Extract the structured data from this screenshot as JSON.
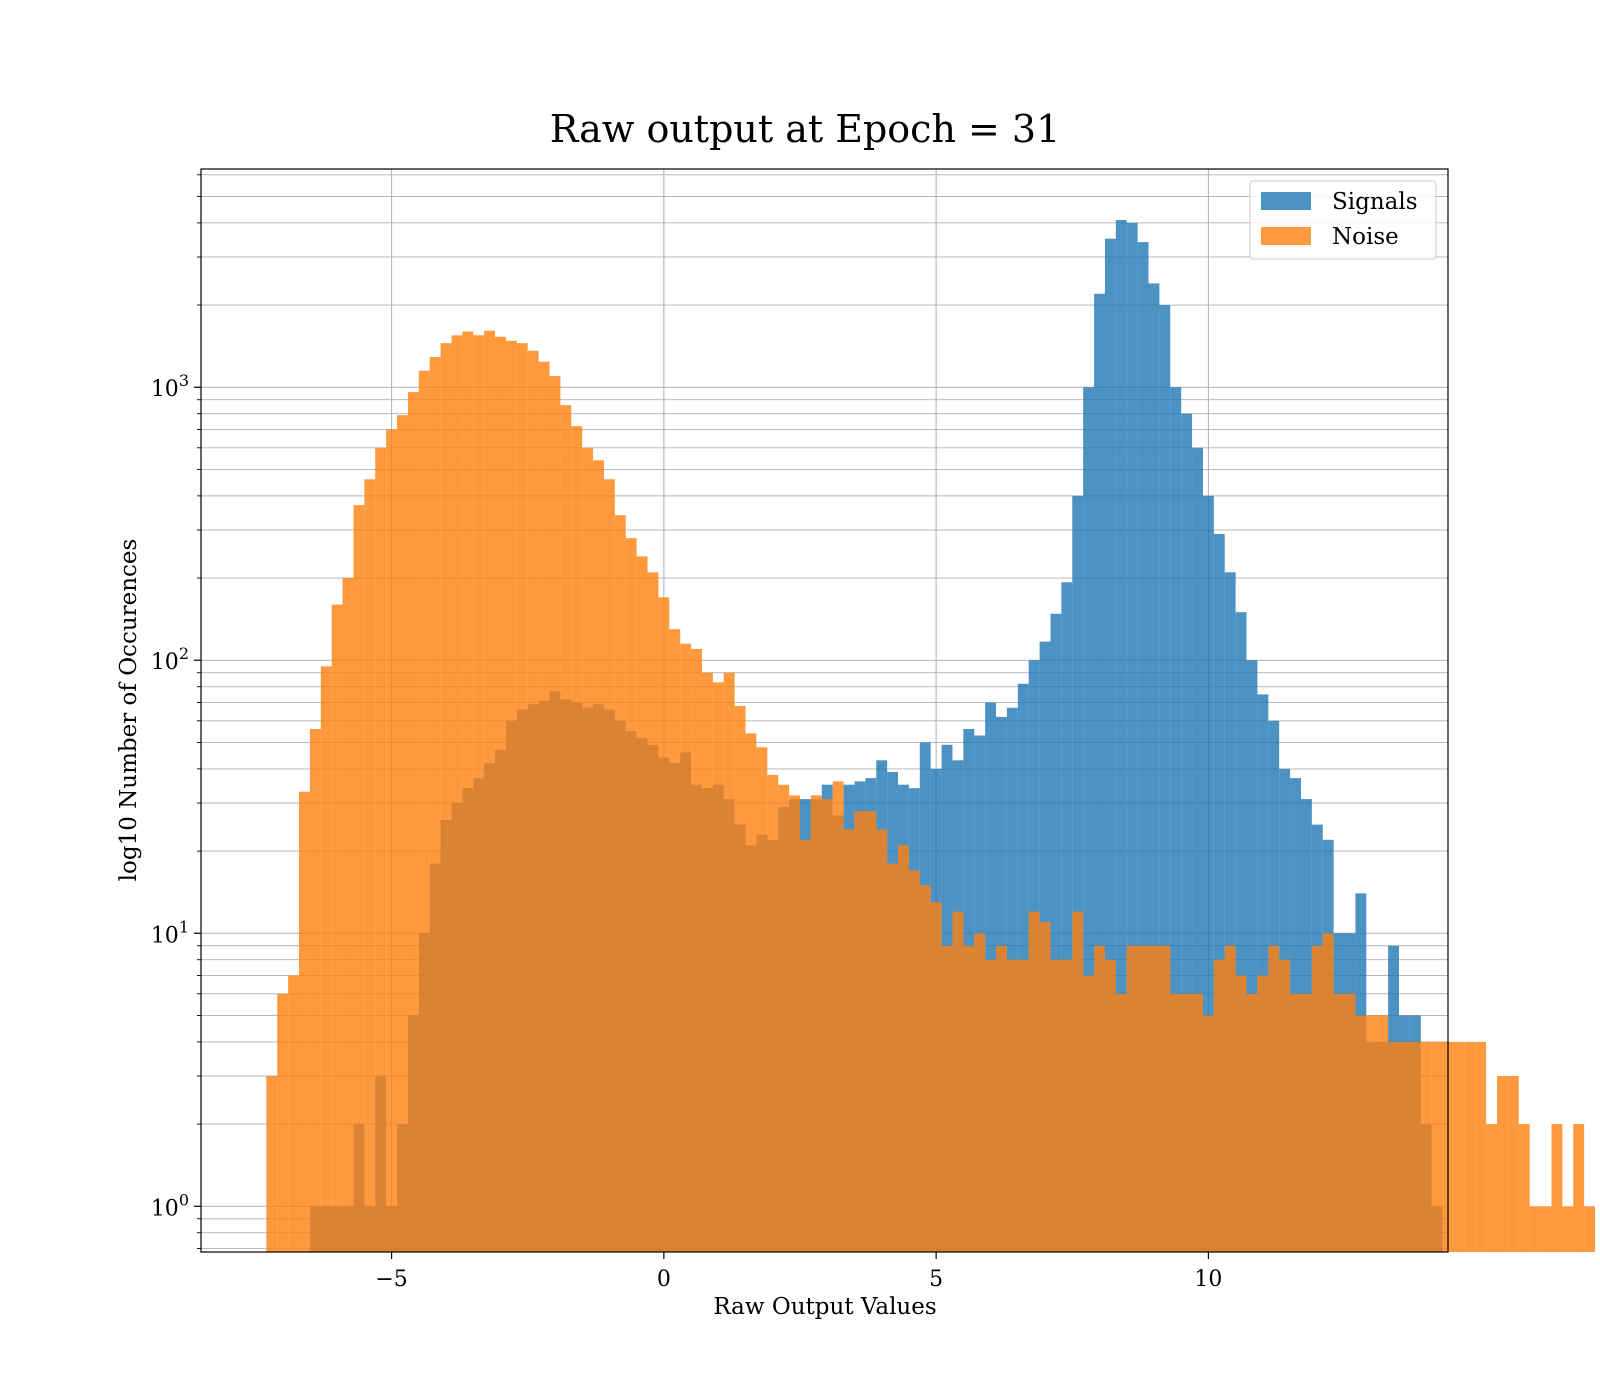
{
  "chart_data": {
    "type": "bar",
    "title": "Raw output at Epoch = 31",
    "xlabel": "Raw Output Values",
    "ylabel": "log10 Number of Occurences",
    "xlim": [
      -8.5,
      14.4
    ],
    "ylim": [
      0.68,
      6300
    ],
    "yscale": "log",
    "grid": true,
    "legend_position": "upper right",
    "x_ticks": [
      {
        "value": -5,
        "label": "−5"
      },
      {
        "value": 0,
        "label": "0"
      },
      {
        "value": 5,
        "label": "5"
      },
      {
        "value": 10,
        "label": "10"
      }
    ],
    "y_ticks": [
      {
        "value": 1,
        "base": "10",
        "exp": "0"
      },
      {
        "value": 10,
        "base": "10",
        "exp": "1"
      },
      {
        "value": 100,
        "base": "10",
        "exp": "2"
      },
      {
        "value": 1000,
        "base": "10",
        "exp": "3"
      }
    ],
    "series": [
      {
        "name": "Signals",
        "color": "#1f77b4",
        "opacity": 0.8,
        "bin_start": -6.5,
        "bin_width": 0.2,
        "counts": [
          1,
          1,
          1,
          1,
          2,
          1,
          3,
          1,
          2,
          5,
          10,
          18,
          26,
          30,
          34,
          37,
          42,
          47,
          60,
          66,
          69,
          71,
          77,
          72,
          70,
          67,
          69,
          66,
          60,
          55,
          52,
          49,
          44,
          42,
          46,
          35,
          34,
          35,
          31,
          25,
          21,
          23,
          22,
          29,
          31,
          31,
          31,
          35,
          27,
          35,
          36,
          37,
          43,
          39,
          35,
          34,
          50,
          40,
          49,
          43,
          56,
          53,
          70,
          62,
          67,
          82,
          100,
          117,
          148,
          193,
          400,
          1000,
          2200,
          3500,
          4100,
          4000,
          3400,
          2400,
          2000,
          1000,
          800,
          600,
          400,
          290,
          210,
          150,
          100,
          75,
          60,
          40,
          37,
          31,
          25,
          22,
          10,
          10,
          14,
          4,
          4,
          9,
          5,
          5,
          2,
          1
        ]
      },
      {
        "name": "Noise",
        "color": "#ff7f0e",
        "opacity": 0.8,
        "bin_start": -7.3,
        "bin_width": 0.2,
        "counts": [
          3,
          6,
          7,
          33,
          56,
          95,
          160,
          200,
          370,
          460,
          600,
          700,
          790,
          960,
          1150,
          1290,
          1450,
          1550,
          1600,
          1550,
          1610,
          1530,
          1480,
          1450,
          1360,
          1240,
          1100,
          860,
          720,
          600,
          540,
          460,
          340,
          280,
          240,
          210,
          170,
          130,
          115,
          110,
          90,
          83,
          90,
          68,
          54,
          48,
          38,
          35,
          32,
          22,
          32,
          31,
          36,
          24,
          28,
          28,
          24,
          18,
          21,
          17,
          15,
          13,
          9,
          12,
          9,
          10,
          8,
          9,
          8,
          8,
          12,
          11,
          8,
          8,
          12,
          7,
          9,
          8,
          6,
          9,
          9,
          9,
          9,
          6,
          6,
          6,
          5,
          8,
          9,
          7,
          6,
          7,
          9,
          8,
          6,
          6,
          9,
          10,
          6,
          6,
          5,
          5,
          5,
          4,
          4,
          4,
          4,
          4,
          4,
          4,
          4,
          4,
          2,
          3,
          3,
          2,
          1,
          1,
          2,
          1,
          2,
          1
        ]
      }
    ]
  }
}
